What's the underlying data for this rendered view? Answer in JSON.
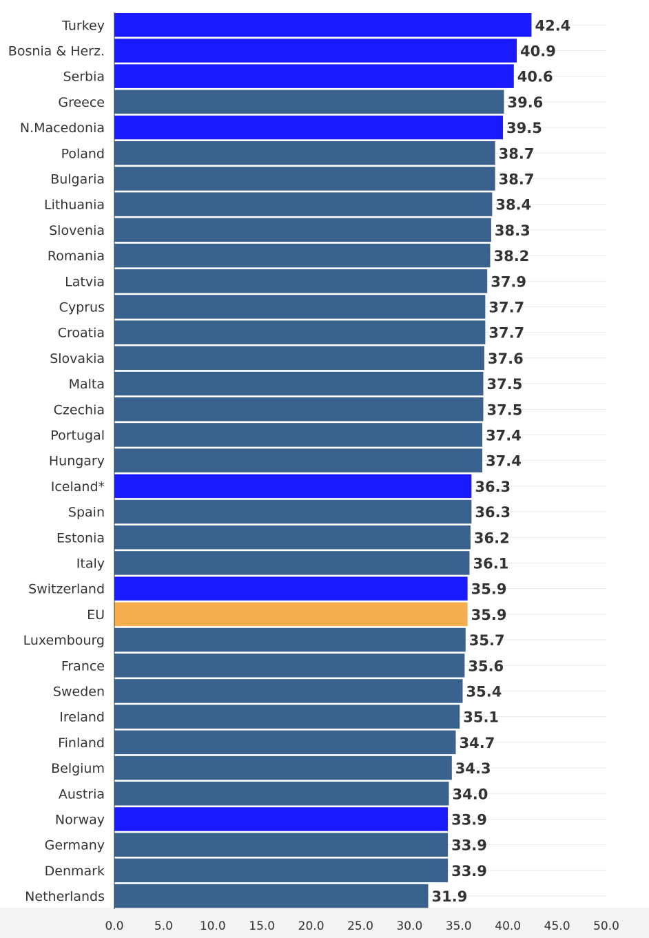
{
  "chart_data": {
    "type": "bar",
    "orientation": "horizontal",
    "title": "",
    "xlabel": "",
    "ylabel": "",
    "xlim": [
      0,
      50
    ],
    "x_ticks": [
      "0.0",
      "5.0",
      "10.0",
      "15.0",
      "20.0",
      "25.0",
      "30.0",
      "35.0",
      "40.0",
      "45.0",
      "50.0"
    ],
    "grid": true,
    "legend": "none",
    "colors": {
      "default": "#3a628e",
      "highlight": "#1a1aff",
      "eu": "#f5ae4e"
    },
    "categories": [
      "Turkey",
      "Bosnia & Herz.",
      "Serbia",
      "Greece",
      "N.Macedonia",
      "Poland",
      "Bulgaria",
      "Lithuania",
      "Slovenia",
      "Romania",
      "Latvia",
      "Cyprus",
      "Croatia",
      "Slovakia",
      "Malta",
      "Czechia",
      "Portugal",
      "Hungary",
      "Iceland*",
      "Spain",
      "Estonia",
      "Italy",
      "Switzerland",
      "EU",
      "Luxembourg",
      "France",
      "Sweden",
      "Ireland",
      "Finland",
      "Belgium",
      "Austria",
      "Norway",
      "Germany",
      "Denmark",
      "Netherlands"
    ],
    "values": [
      42.4,
      40.9,
      40.6,
      39.6,
      39.5,
      38.7,
      38.7,
      38.4,
      38.3,
      38.2,
      37.9,
      37.7,
      37.7,
      37.6,
      37.5,
      37.5,
      37.4,
      37.4,
      36.3,
      36.3,
      36.2,
      36.1,
      35.9,
      35.9,
      35.7,
      35.6,
      35.4,
      35.1,
      34.7,
      34.3,
      34.0,
      33.9,
      33.9,
      33.9,
      31.9
    ],
    "value_labels": [
      "42.4",
      "40.9",
      "40.6",
      "39.6",
      "39.5",
      "38.7",
      "38.7",
      "38.4",
      "38.3",
      "38.2",
      "37.9",
      "37.7",
      "37.7",
      "37.6",
      "37.5",
      "37.5",
      "37.4",
      "37.4",
      "36.3",
      "36.3",
      "36.2",
      "36.1",
      "35.9",
      "35.9",
      "35.7",
      "35.6",
      "35.4",
      "35.1",
      "34.7",
      "34.3",
      "34.0",
      "33.9",
      "33.9",
      "33.9",
      "31.9"
    ],
    "bar_groups": [
      "highlight",
      "highlight",
      "highlight",
      "default",
      "highlight",
      "default",
      "default",
      "default",
      "default",
      "default",
      "default",
      "default",
      "default",
      "default",
      "default",
      "default",
      "default",
      "default",
      "highlight",
      "default",
      "default",
      "default",
      "highlight",
      "eu",
      "default",
      "default",
      "default",
      "default",
      "default",
      "default",
      "default",
      "highlight",
      "default",
      "default",
      "default"
    ]
  }
}
